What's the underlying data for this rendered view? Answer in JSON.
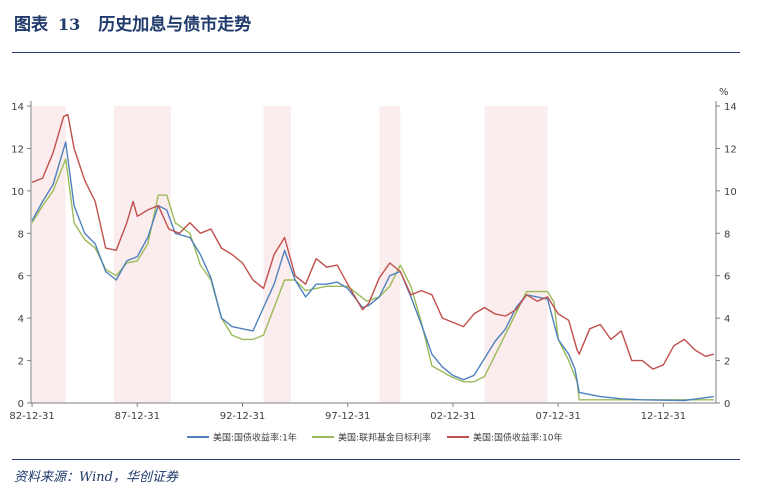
{
  "header": {
    "label": "图表",
    "number": "13",
    "title": "历史加息与债市走势"
  },
  "footer": {
    "source": "资料来源：Wind，华创证券"
  },
  "colors": {
    "y1": "#4f81bd",
    "ff": "#9bbb59",
    "y10": "#c0504d",
    "band": "#fbeced",
    "brand": "#1f3a6b"
  },
  "chart_data": {
    "type": "line",
    "y_unit_right": "%",
    "ylim": [
      0,
      14
    ],
    "yticks": [
      0,
      2,
      4,
      6,
      8,
      10,
      12,
      14
    ],
    "xlim": [
      1982.95,
      2015.5
    ],
    "x_tick_labels": [
      "82-12-31",
      "87-12-31",
      "92-12-31",
      "97-12-31",
      "02-12-31",
      "07-12-31",
      "12-12-31"
    ],
    "x_tick_values": [
      1983.0,
      1988.0,
      1993.0,
      1998.0,
      2003.0,
      2008.0,
      2013.0
    ],
    "grid": false,
    "legend_position": "bottom",
    "shaded_periods": [
      {
        "start": 1983.0,
        "end": 1984.6
      },
      {
        "start": 1986.9,
        "end": 1989.6
      },
      {
        "start": 1994.0,
        "end": 1995.3
      },
      {
        "start": 1999.5,
        "end": 2000.5
      },
      {
        "start": 2004.5,
        "end": 2007.5
      }
    ],
    "series": [
      {
        "name": "美国:国债收益率:1年",
        "color": "#4f81bd",
        "x": [
          1983.0,
          1983.5,
          1984.0,
          1984.6,
          1985.0,
          1985.5,
          1986.0,
          1986.5,
          1987.0,
          1987.5,
          1988.0,
          1988.5,
          1989.0,
          1989.4,
          1989.8,
          1990.5,
          1991.0,
          1991.5,
          1992.0,
          1992.5,
          1993.0,
          1993.5,
          1994.0,
          1994.5,
          1995.0,
          1995.5,
          1996.0,
          1996.5,
          1997.0,
          1997.5,
          1998.0,
          1998.7,
          1999.0,
          1999.5,
          2000.0,
          2000.5,
          2001.0,
          2001.5,
          2002.0,
          2002.5,
          2003.0,
          2003.5,
          2004.0,
          2004.5,
          2005.0,
          2005.5,
          2006.0,
          2006.5,
          2007.0,
          2007.5,
          2008.0,
          2008.5,
          2008.8,
          2009.0,
          2010.0,
          2011.0,
          2012.0,
          2013.0,
          2014.0,
          2015.0,
          2015.4
        ],
        "y": [
          8.6,
          9.5,
          10.3,
          12.3,
          9.3,
          8.0,
          7.5,
          6.2,
          5.8,
          6.7,
          6.9,
          7.8,
          9.3,
          9.1,
          8.0,
          7.8,
          7.0,
          5.9,
          4.0,
          3.6,
          3.5,
          3.4,
          4.5,
          5.6,
          7.2,
          5.8,
          5.0,
          5.6,
          5.6,
          5.7,
          5.4,
          4.5,
          4.6,
          5.0,
          6.0,
          6.2,
          5.0,
          3.7,
          2.3,
          1.7,
          1.3,
          1.1,
          1.3,
          2.1,
          2.9,
          3.5,
          4.5,
          5.1,
          5.0,
          4.9,
          3.0,
          2.3,
          1.6,
          0.5,
          0.3,
          0.2,
          0.15,
          0.13,
          0.12,
          0.25,
          0.3
        ]
      },
      {
        "name": "美国:联邦基金目标利率",
        "color": "#9bbb59",
        "x": [
          1983.0,
          1983.5,
          1984.0,
          1984.6,
          1985.0,
          1985.5,
          1986.0,
          1986.5,
          1987.0,
          1987.5,
          1988.0,
          1988.5,
          1989.0,
          1989.4,
          1989.8,
          1990.5,
          1991.0,
          1991.5,
          1992.0,
          1992.5,
          1993.0,
          1993.5,
          1994.0,
          1994.5,
          1995.0,
          1995.5,
          1996.0,
          1997.0,
          1998.0,
          1998.9,
          1999.5,
          2000.0,
          2000.5,
          2001.0,
          2001.5,
          2002.0,
          2002.9,
          2003.5,
          2004.0,
          2004.5,
          2005.0,
          2005.5,
          2006.0,
          2006.5,
          2007.0,
          2007.5,
          2007.8,
          2008.0,
          2008.5,
          2008.9,
          2009.0,
          2015.4
        ],
        "y": [
          8.5,
          9.3,
          10.0,
          11.5,
          8.5,
          7.7,
          7.3,
          6.3,
          6.0,
          6.6,
          6.7,
          7.5,
          9.8,
          9.8,
          8.5,
          8.0,
          6.5,
          5.8,
          4.0,
          3.2,
          3.0,
          3.0,
          3.2,
          4.5,
          5.8,
          5.8,
          5.3,
          5.5,
          5.5,
          4.8,
          5.0,
          5.5,
          6.5,
          5.5,
          3.8,
          1.75,
          1.25,
          1.0,
          1.0,
          1.25,
          2.25,
          3.25,
          4.25,
          5.25,
          5.25,
          5.25,
          4.75,
          3.0,
          2.0,
          1.0,
          0.15,
          0.15
        ]
      },
      {
        "name": "美国:国债收益率:10年",
        "color": "#c0504d",
        "x": [
          1983.0,
          1983.5,
          1984.0,
          1984.5,
          1984.7,
          1985.0,
          1985.5,
          1986.0,
          1986.5,
          1987.0,
          1987.5,
          1987.8,
          1988.0,
          1988.5,
          1989.0,
          1989.5,
          1990.0,
          1990.5,
          1991.0,
          1991.5,
          1992.0,
          1992.5,
          1993.0,
          1993.5,
          1994.0,
          1994.5,
          1995.0,
          1995.5,
          1996.0,
          1996.5,
          1997.0,
          1997.5,
          1998.0,
          1998.7,
          1999.0,
          1999.5,
          2000.0,
          2000.5,
          2001.0,
          2001.5,
          2002.0,
          2002.5,
          2003.0,
          2003.5,
          2004.0,
          2004.5,
          2005.0,
          2005.5,
          2006.0,
          2006.5,
          2007.0,
          2007.5,
          2008.0,
          2008.5,
          2008.9,
          2009.0,
          2009.5,
          2010.0,
          2010.5,
          2011.0,
          2011.5,
          2012.0,
          2012.5,
          2013.0,
          2013.5,
          2014.0,
          2014.5,
          2015.0,
          2015.4
        ],
        "y": [
          10.4,
          10.6,
          11.8,
          13.5,
          13.6,
          12.0,
          10.5,
          9.5,
          7.3,
          7.2,
          8.5,
          9.5,
          8.8,
          9.1,
          9.3,
          8.2,
          8.0,
          8.5,
          8.0,
          8.2,
          7.3,
          7.0,
          6.6,
          5.8,
          5.4,
          7.0,
          7.8,
          6.0,
          5.6,
          6.8,
          6.4,
          6.5,
          5.6,
          4.4,
          4.7,
          5.9,
          6.6,
          6.2,
          5.1,
          5.3,
          5.1,
          4.0,
          3.8,
          3.6,
          4.2,
          4.5,
          4.2,
          4.1,
          4.4,
          5.1,
          4.8,
          5.0,
          4.2,
          3.9,
          2.5,
          2.3,
          3.5,
          3.7,
          3.0,
          3.4,
          2.0,
          2.0,
          1.6,
          1.8,
          2.7,
          3.0,
          2.5,
          2.2,
          2.3
        ]
      }
    ]
  }
}
